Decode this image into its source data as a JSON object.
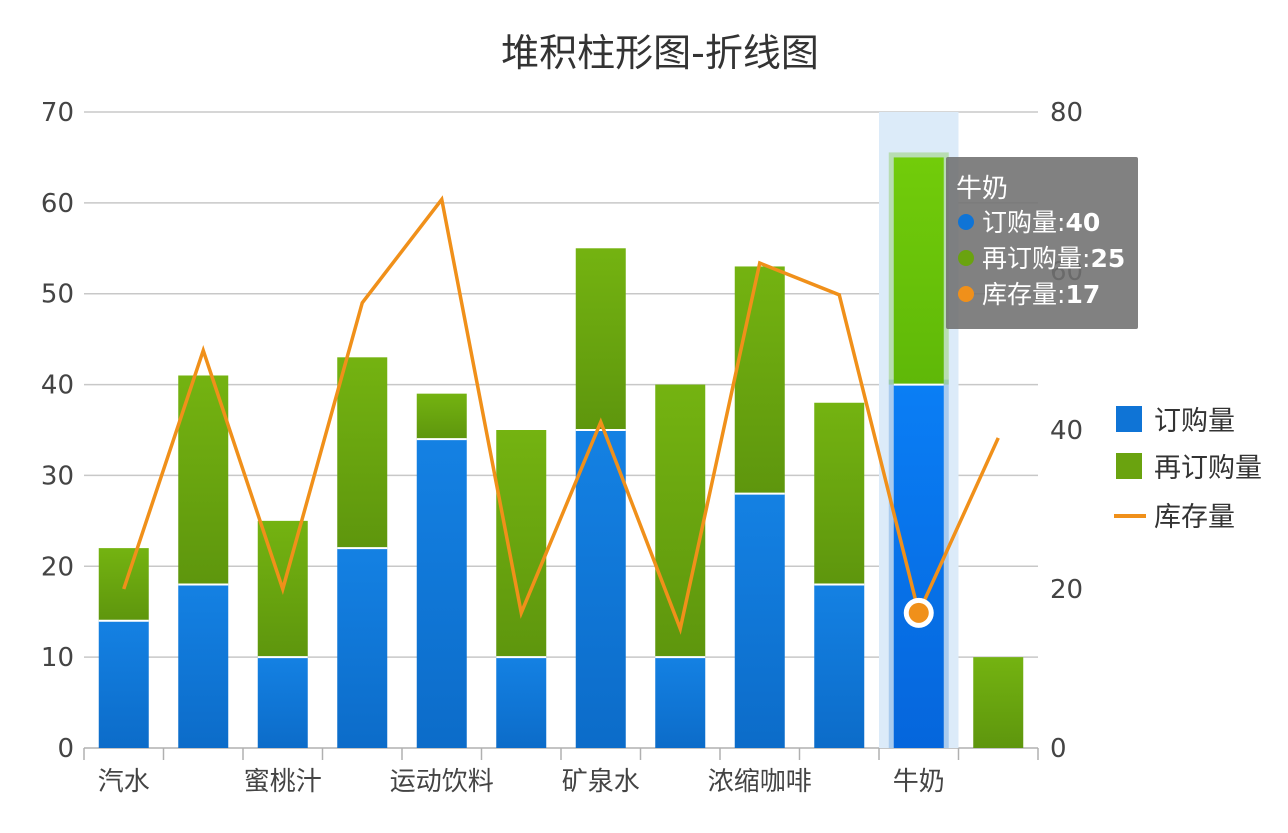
{
  "chart_data": {
    "type": "bar",
    "title": "堆积柱形图-折线图",
    "categories": [
      "汽水",
      "",
      "蜜桃汁",
      "",
      "运动饮料",
      "",
      "矿泉水",
      "",
      "浓缩咖啡",
      "",
      "牛奶",
      ""
    ],
    "series": [
      {
        "name": "订购量",
        "type": "bar",
        "axis": "left",
        "values": [
          14,
          18,
          10,
          22,
          34,
          10,
          35,
          10,
          28,
          18,
          40,
          0
        ]
      },
      {
        "name": "再订购量",
        "type": "bar",
        "axis": "left",
        "values": [
          8,
          23,
          15,
          21,
          5,
          25,
          20,
          30,
          25,
          20,
          25,
          10
        ]
      },
      {
        "name": "库存量",
        "type": "line",
        "axis": "right",
        "values": [
          20,
          50,
          20,
          56,
          69,
          17,
          41,
          15,
          61,
          57,
          17,
          39
        ]
      }
    ],
    "y_left": {
      "min": 0,
      "max": 70,
      "ticks": [
        0,
        10,
        20,
        30,
        40,
        50,
        60,
        70
      ]
    },
    "y_right": {
      "min": 0,
      "max": 80,
      "ticks": [
        0,
        20,
        40,
        60,
        80
      ]
    },
    "legend_position": "right",
    "grid": true,
    "colors": {
      "order": "#0f74d6",
      "reorder": "#6aa30f",
      "stock": "#f0901a"
    },
    "tooltip": {
      "category": "牛奶",
      "items": [
        {
          "label": "订购量",
          "value": "40",
          "color": "#0f74d6"
        },
        {
          "label": "再订购量",
          "value": "25",
          "color": "#6aa30f"
        },
        {
          "label": "库存量",
          "value": "17",
          "color": "#f0901a"
        }
      ]
    },
    "highlight_category_index": 10
  }
}
